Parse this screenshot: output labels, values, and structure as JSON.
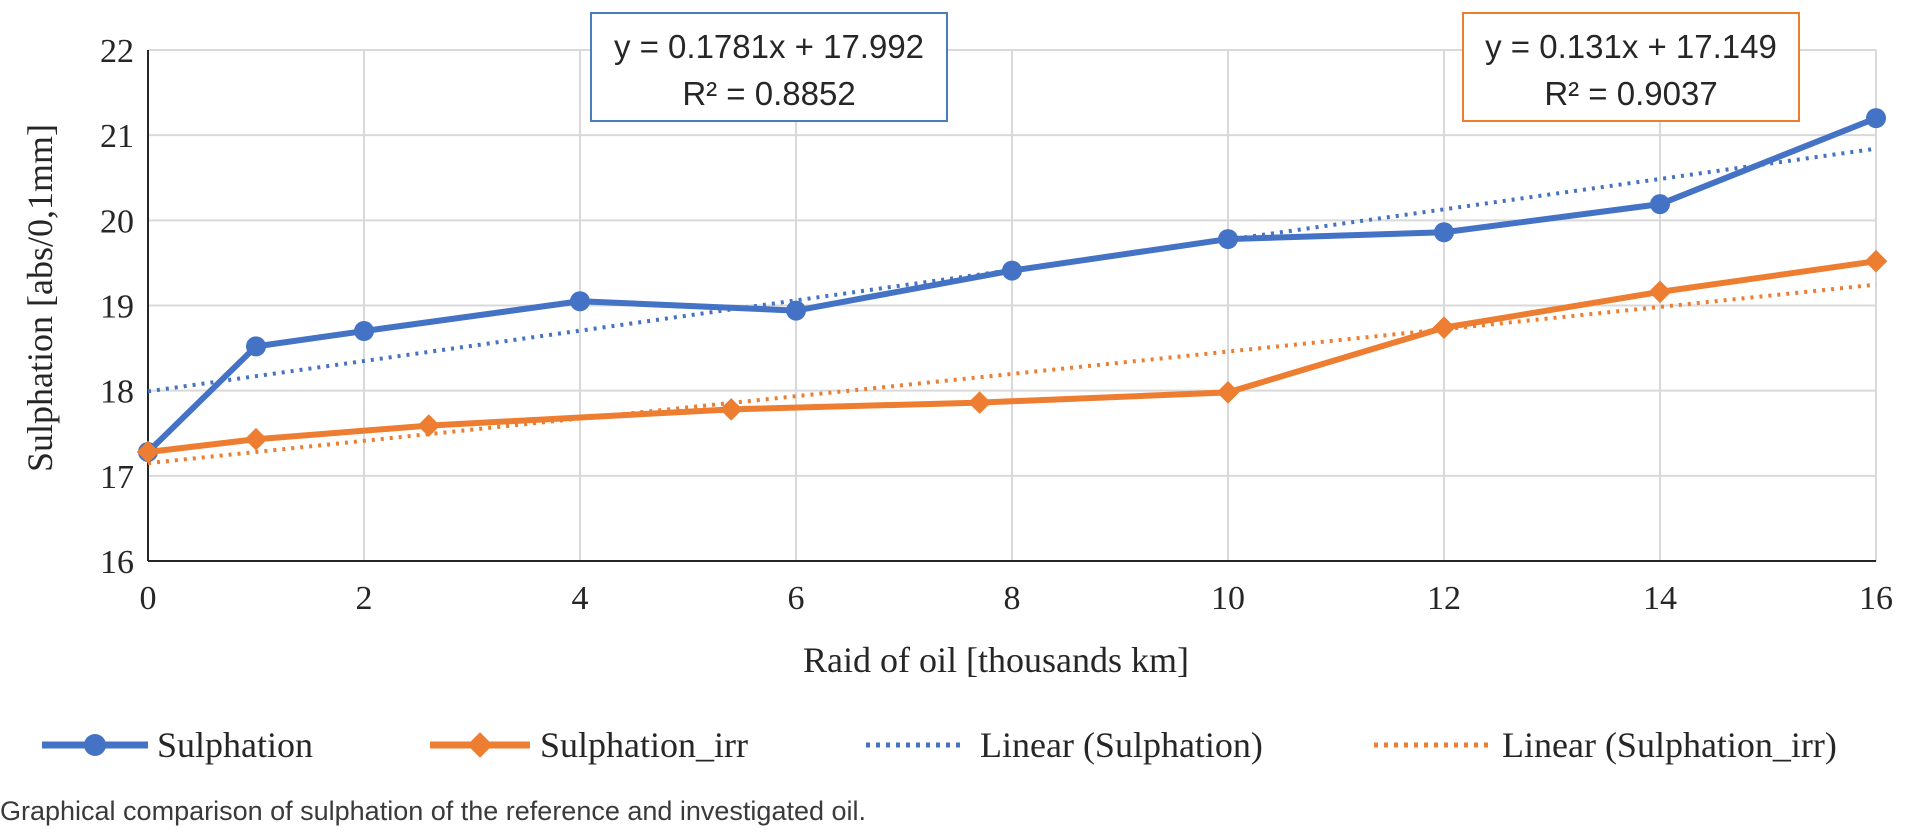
{
  "chart_data": {
    "type": "line",
    "xlabel": "Raid of oil [thousands km]",
    "ylabel": "Sulphation [abs/0,1mm]",
    "xlim": [
      0,
      16
    ],
    "ylim": [
      16,
      22
    ],
    "xticks": [
      0,
      2,
      4,
      6,
      8,
      10,
      12,
      14,
      16
    ],
    "yticks": [
      16,
      17,
      18,
      19,
      20,
      21,
      22
    ],
    "grid": true,
    "legend_position": "bottom",
    "series": [
      {
        "name": "Sulphation",
        "color": "#4472C4",
        "marker": "circle",
        "x": [
          0,
          1,
          2,
          4,
          6,
          8,
          10,
          12,
          14,
          16
        ],
        "y": [
          17.28,
          18.52,
          18.7,
          19.05,
          18.94,
          19.41,
          19.78,
          19.86,
          20.19,
          21.2
        ]
      },
      {
        "name": "Sulphation_irr",
        "color": "#ED7D31",
        "marker": "diamond",
        "x": [
          0,
          1,
          2.6,
          5.4,
          7.7,
          10,
          12,
          14,
          16
        ],
        "y": [
          17.28,
          17.43,
          17.59,
          17.78,
          17.86,
          17.98,
          18.74,
          19.16,
          19.52
        ]
      }
    ],
    "trendlines": [
      {
        "name": "Linear (Sulphation)",
        "color": "#4472C4",
        "slope": 0.1781,
        "intercept": 17.992,
        "equation": "y = 0.1781x + 17.992",
        "r2": "R² = 0.8852"
      },
      {
        "name": "Linear (Sulphation_irr)",
        "color": "#ED7D31",
        "slope": 0.131,
        "intercept": 17.149,
        "equation": "y = 0.131x + 17.149",
        "r2": "R² = 0.9037"
      }
    ]
  },
  "caption": "Graphical comparison of sulphation of the reference and investigated oil."
}
